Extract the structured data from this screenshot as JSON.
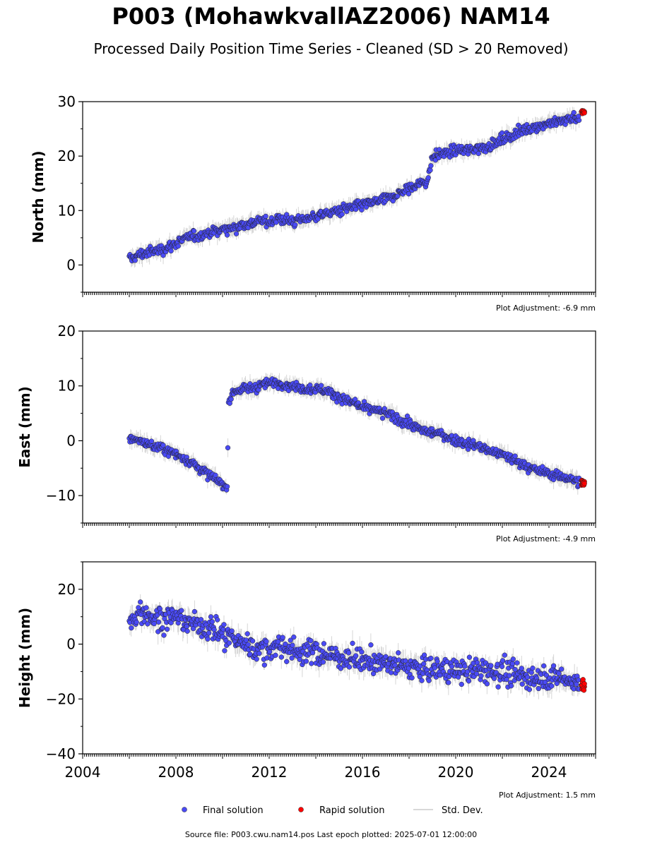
{
  "title": "P003 (MohawkvallAZ2006) NAM14",
  "subtitle": "Processed Daily Position Time Series - Cleaned (SD > 20 Removed)",
  "footer": "Source file: P003.cwu.nam14.pos  Last epoch plotted: 2025-07-01 12:00:00",
  "legend": [
    {
      "label": "Final solution",
      "color": "#4a4af5",
      "marker": "dot"
    },
    {
      "label": "Rapid solution",
      "color": "#ff0000",
      "marker": "dot"
    },
    {
      "label": "Std. Dev.",
      "color": "#cccccc",
      "marker": "line"
    }
  ],
  "chart_data": [
    {
      "type": "scatter",
      "ylabel": "North (mm)",
      "adjustment": "Plot Adjustment: -6.9 mm",
      "xlim": [
        2004,
        2026
      ],
      "ylim": [
        -5,
        30
      ],
      "yticks": [
        0,
        10,
        20,
        30
      ],
      "ytick_labels": [
        "0",
        "10",
        "20",
        "30"
      ],
      "series": [
        {
          "name": "Final solution",
          "x": [
            2006.0,
            2006.5,
            2007.0,
            2007.5,
            2008.0,
            2008.5,
            2009.0,
            2009.5,
            2010.0,
            2010.5,
            2011.0,
            2011.5,
            2012.0,
            2012.5,
            2013.0,
            2013.5,
            2014.0,
            2014.5,
            2015.0,
            2015.5,
            2016.0,
            2016.5,
            2017.0,
            2017.5,
            2018.0,
            2018.5,
            2018.8,
            2019.0,
            2019.5,
            2020.0,
            2020.5,
            2021.0,
            2021.5,
            2022.0,
            2022.5,
            2023.0,
            2023.5,
            2024.0,
            2024.5,
            2025.0,
            2025.3
          ],
          "y": [
            1,
            2,
            2.5,
            3,
            4,
            5,
            5.5,
            6,
            6.5,
            7,
            7.5,
            8,
            8,
            8.5,
            8,
            8.5,
            9,
            9.5,
            10,
            10.5,
            11,
            11.5,
            12,
            13,
            14,
            15,
            15.5,
            20,
            20.5,
            21,
            21,
            21.5,
            22,
            23,
            24,
            25,
            25.5,
            26,
            26.5,
            27,
            27
          ]
        },
        {
          "name": "Rapid solution",
          "x": [
            2025.4,
            2025.5
          ],
          "y": [
            28,
            28
          ]
        }
      ]
    },
    {
      "type": "scatter",
      "ylabel": "East (mm)",
      "adjustment": "Plot Adjustment: -4.9 mm",
      "xlim": [
        2004,
        2026
      ],
      "ylim": [
        -15,
        20
      ],
      "yticks": [
        -10,
        0,
        10,
        20
      ],
      "ytick_labels": [
        "−10",
        "0",
        "10",
        "20"
      ],
      "series": [
        {
          "name": "Final solution",
          "x": [
            2006.0,
            2006.5,
            2007.0,
            2007.5,
            2008.0,
            2008.5,
            2009.0,
            2009.5,
            2010.0,
            2010.2,
            2010.25,
            2010.5,
            2011.0,
            2011.5,
            2012.0,
            2012.5,
            2013.0,
            2013.5,
            2014.0,
            2014.5,
            2015.0,
            2015.5,
            2016.0,
            2016.5,
            2017.0,
            2017.5,
            2018.0,
            2018.5,
            2019.0,
            2019.5,
            2020.0,
            2020.5,
            2021.0,
            2021.5,
            2022.0,
            2022.5,
            2023.0,
            2023.5,
            2024.0,
            2024.5,
            2025.0,
            2025.3
          ],
          "y": [
            0.5,
            0,
            -1,
            -1.5,
            -2.5,
            -3.5,
            -5,
            -6.5,
            -8,
            -9,
            7,
            9,
            9.5,
            10,
            10.5,
            10.5,
            10,
            9.5,
            9.5,
            9,
            8,
            7,
            6,
            5.5,
            5,
            4,
            3,
            2,
            1.5,
            1,
            0,
            -0.5,
            -1,
            -2,
            -2.5,
            -3.5,
            -4.5,
            -5.5,
            -6,
            -6.5,
            -7,
            -7.5
          ]
        },
        {
          "name": "Rapid solution",
          "x": [
            2025.4,
            2025.5
          ],
          "y": [
            -7.5,
            -8
          ]
        }
      ]
    },
    {
      "type": "scatter",
      "ylabel": "Height (mm)",
      "adjustment": "Plot Adjustment: 1.5 mm",
      "xlim": [
        2004,
        2026
      ],
      "ylim": [
        -40,
        30
      ],
      "yticks": [
        -40,
        -20,
        0,
        20
      ],
      "ytick_labels": [
        "−40",
        "−20",
        "0",
        "20"
      ],
      "xticks": [
        2004,
        2008,
        2012,
        2016,
        2020,
        2024
      ],
      "xtick_labels": [
        "2004",
        "2008",
        "2012",
        "2016",
        "2020",
        "2024"
      ],
      "series": [
        {
          "name": "Final solution",
          "x": [
            2006.0,
            2006.5,
            2007.0,
            2007.5,
            2008.0,
            2008.5,
            2009.0,
            2009.5,
            2010.0,
            2010.5,
            2011.0,
            2011.5,
            2012.0,
            2012.5,
            2013.0,
            2013.5,
            2014.0,
            2014.5,
            2015.0,
            2015.5,
            2016.0,
            2016.5,
            2017.0,
            2017.5,
            2018.0,
            2018.5,
            2019.0,
            2019.5,
            2020.0,
            2020.5,
            2021.0,
            2021.5,
            2022.0,
            2022.5,
            2023.0,
            2023.5,
            2024.0,
            2024.5,
            2025.0,
            2025.3
          ],
          "y": [
            8,
            12,
            10,
            9,
            10,
            8,
            7,
            6,
            3,
            2,
            0,
            -2,
            -2,
            -1,
            -2,
            -3,
            -3,
            -4,
            -5,
            -5,
            -6,
            -6,
            -7,
            -8,
            -8,
            -9,
            -9,
            -9,
            -10,
            -10,
            -9,
            -10,
            -10,
            -11,
            -12,
            -12,
            -12,
            -12,
            -14,
            -15
          ]
        },
        {
          "name": "Rapid solution",
          "x": [
            2025.4,
            2025.5
          ],
          "y": [
            -14,
            -15
          ]
        }
      ]
    }
  ]
}
